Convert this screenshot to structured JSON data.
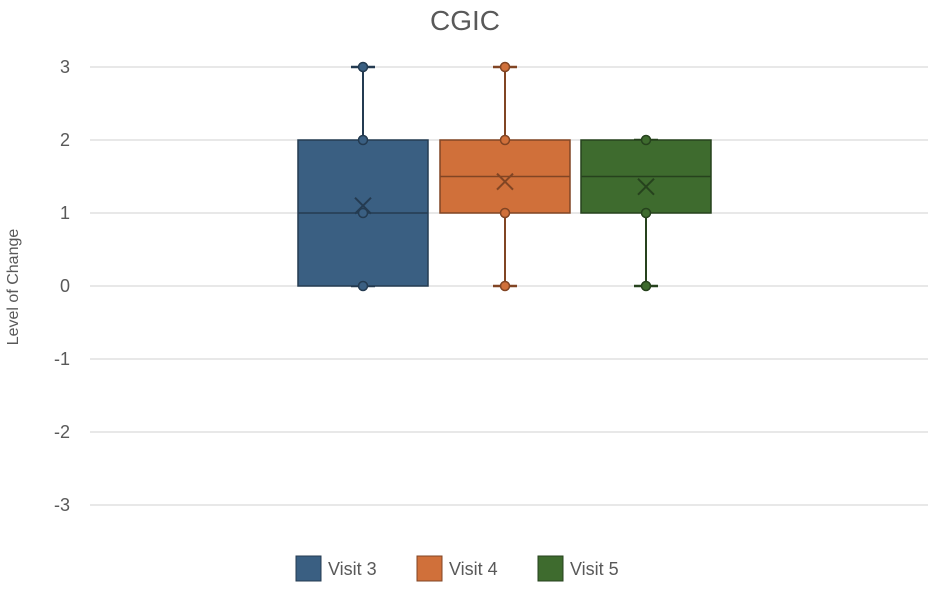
{
  "chart_data": {
    "type": "box",
    "title": "CGIC",
    "xlabel": "",
    "ylabel": "Level of Change",
    "ylim": [
      -3,
      3
    ],
    "yticks": [
      -3,
      -2,
      -1,
      0,
      1,
      2,
      3
    ],
    "grid": true,
    "legend_position": "bottom",
    "series": [
      {
        "name": "Visit 3",
        "color": "#3A5F82",
        "min": 0,
        "q1": 0,
        "median": 1,
        "q3": 2,
        "max": 3,
        "mean": 1.1,
        "points": [
          0,
          1,
          2,
          3
        ]
      },
      {
        "name": "Visit 4",
        "color": "#D0703A",
        "min": 0,
        "q1": 1,
        "median": 1.5,
        "q3": 2,
        "max": 3,
        "mean": 1.43,
        "points": [
          0,
          1,
          2,
          3
        ]
      },
      {
        "name": "Visit 5",
        "color": "#3E6B2E",
        "min": 0,
        "q1": 1,
        "median": 1.5,
        "q3": 2,
        "max": 2,
        "mean": 1.36,
        "points": [
          0,
          1,
          2
        ]
      }
    ]
  }
}
